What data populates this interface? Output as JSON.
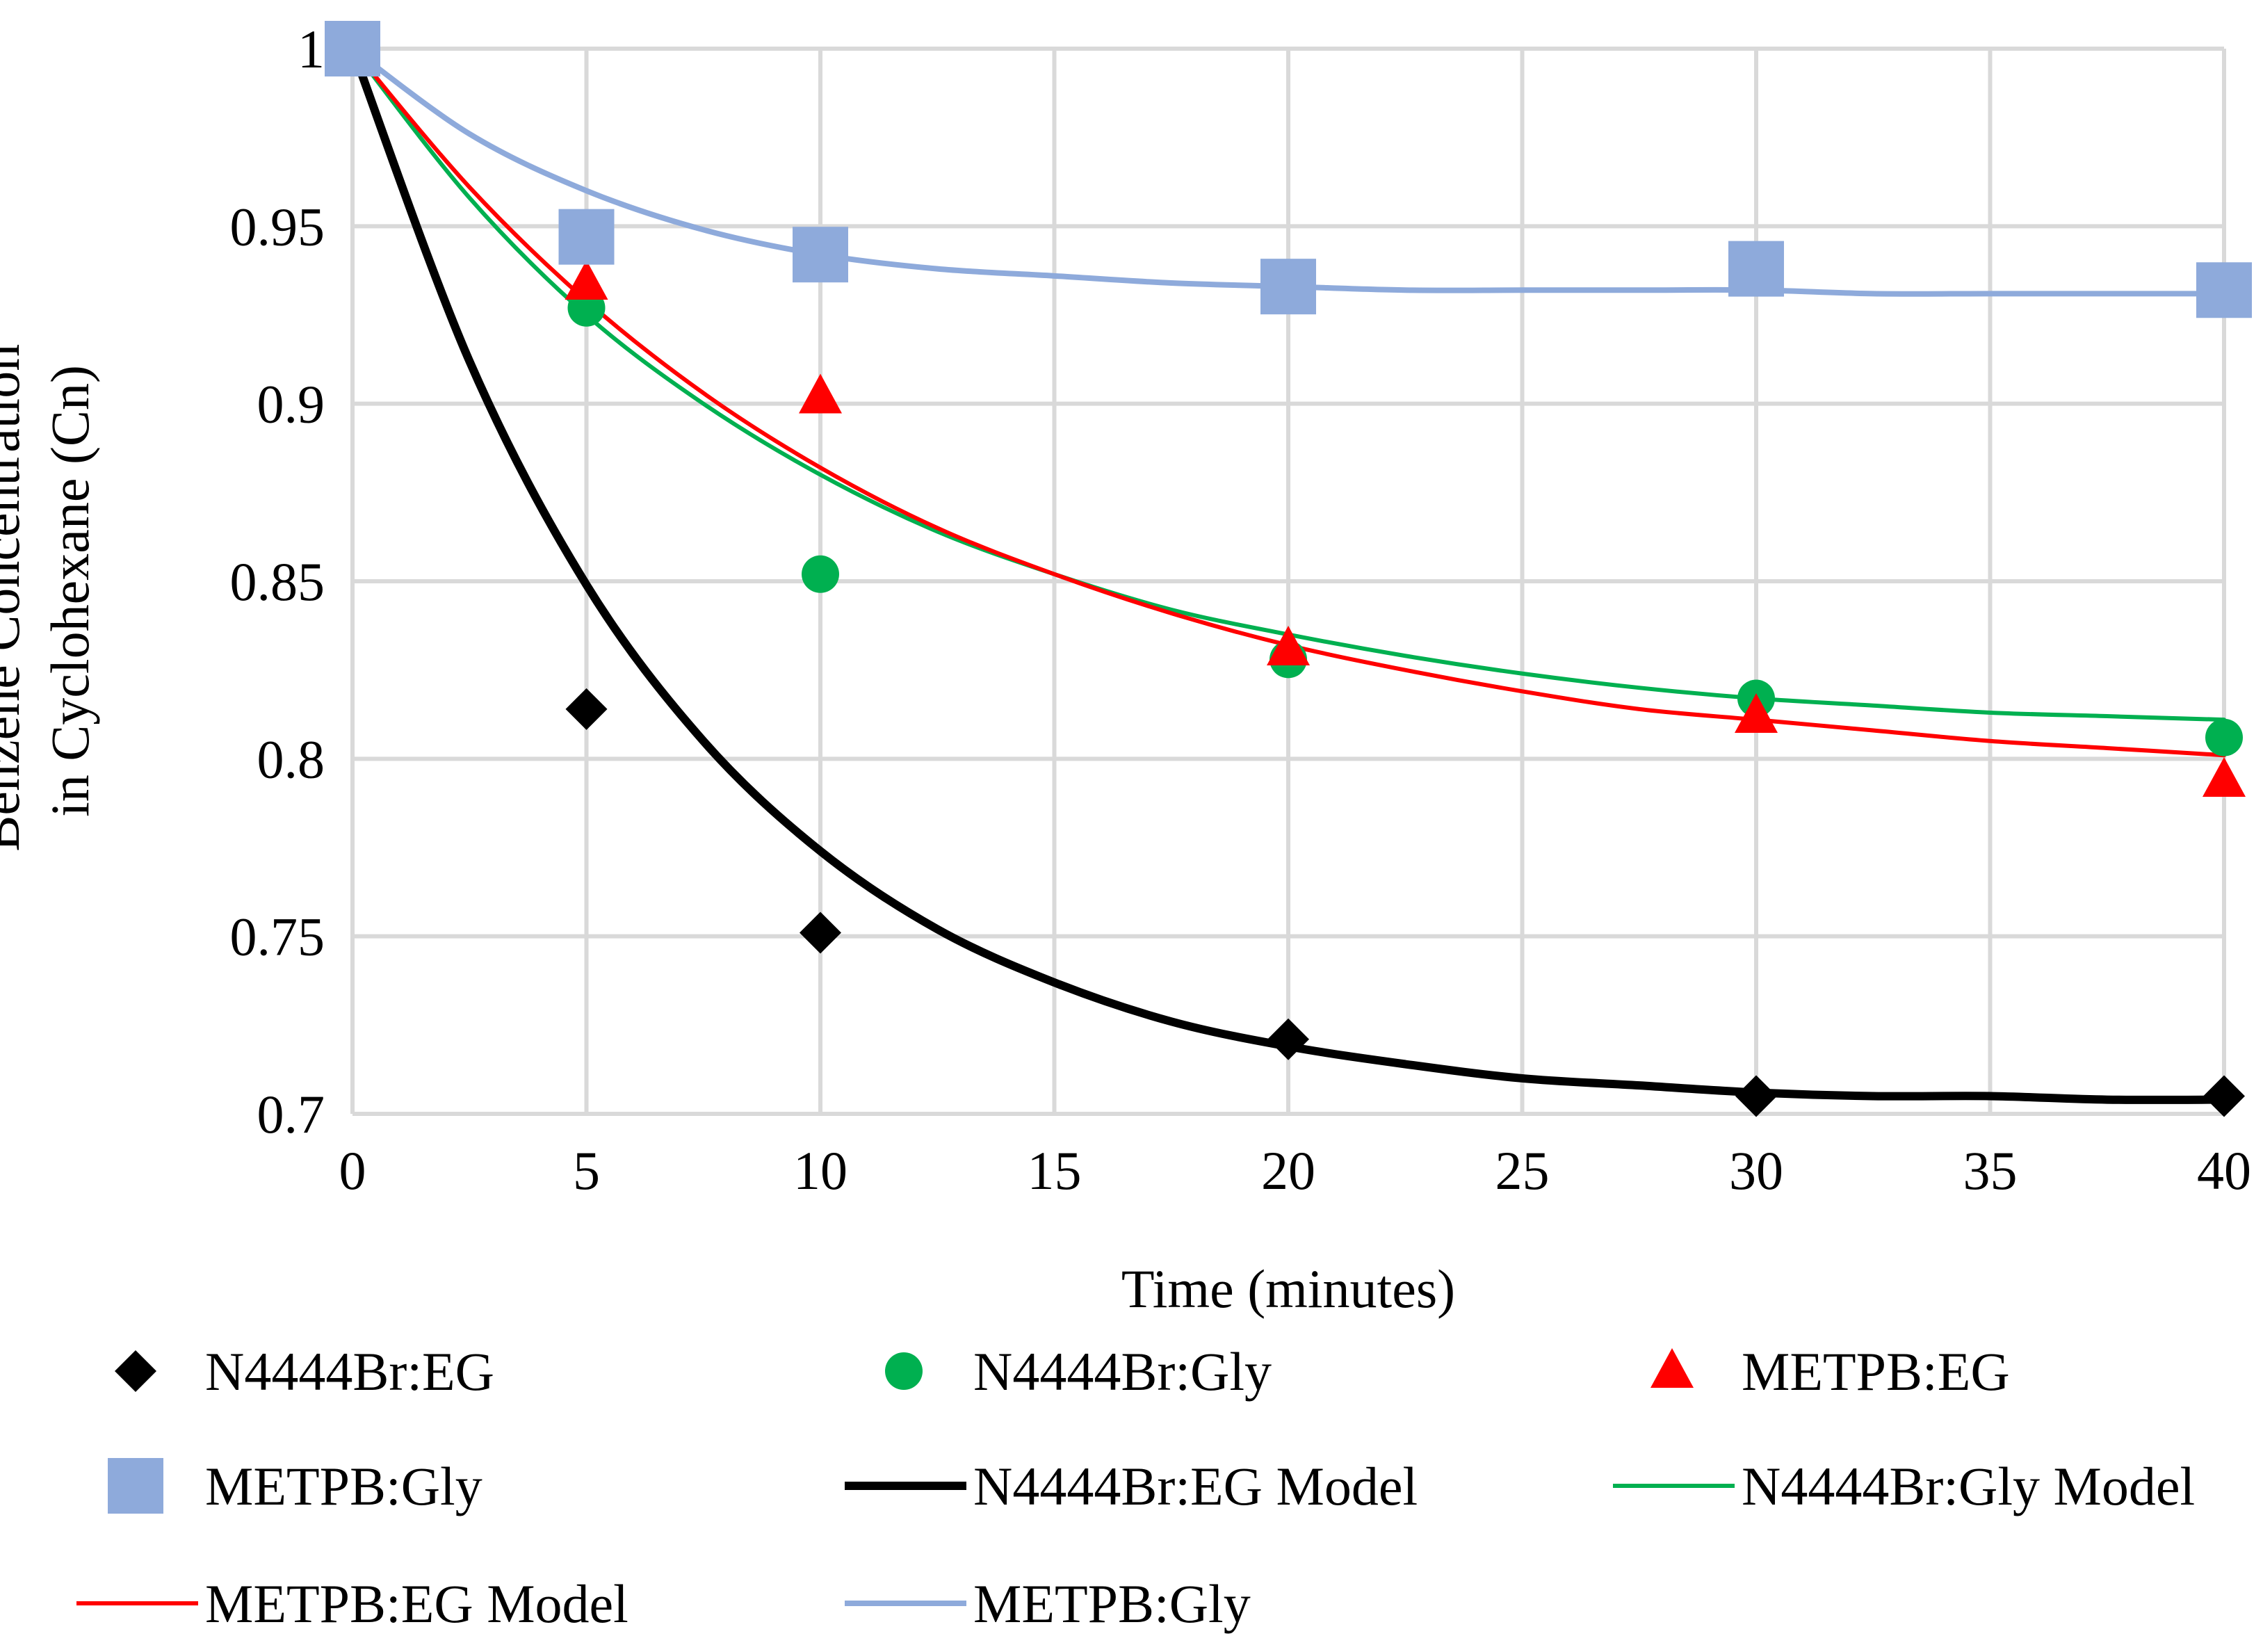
{
  "chart_data": {
    "type": "scatter",
    "title": "",
    "xlabel": "Time (minutes)",
    "ylabel_lines": [
      "Benzene Concentration",
      "in Cyclohexane (Cn)"
    ],
    "xlim": [
      0,
      40
    ],
    "ylim": [
      0.7,
      1.0
    ],
    "xticks": [
      0,
      5,
      10,
      15,
      20,
      25,
      30,
      35,
      40
    ],
    "xtick_labels": [
      "0",
      "5",
      "10",
      "15",
      "20",
      "25",
      "30",
      "35",
      "40"
    ],
    "yticks": [
      0.7,
      0.75,
      0.8,
      0.85,
      0.9,
      0.95,
      1.0
    ],
    "ytick_labels": [
      "0.7",
      "0.75",
      "0.8",
      "0.85",
      "0.9",
      "0.95",
      "1"
    ],
    "grid": true,
    "legend_position": "bottom",
    "series": [
      {
        "name": "N4444Br:EG",
        "kind": "marker",
        "marker": "diamond",
        "color": "#000000",
        "x": [
          0,
          5,
          10,
          20,
          30,
          40
        ],
        "y": [
          1.0,
          0.814,
          0.751,
          0.721,
          0.705,
          0.705
        ]
      },
      {
        "name": "N4444Br:Gly",
        "kind": "marker",
        "marker": "circle",
        "color": "#00b050",
        "x": [
          0,
          5,
          10,
          20,
          30,
          40
        ],
        "y": [
          1.0,
          0.927,
          0.852,
          0.828,
          0.817,
          0.806
        ]
      },
      {
        "name": "METPB:EG",
        "kind": "marker",
        "marker": "triangle",
        "color": "#ff0000",
        "x": [
          0,
          5,
          10,
          20,
          30,
          40
        ],
        "y": [
          1.0,
          0.934,
          0.902,
          0.831,
          0.812,
          0.794
        ]
      },
      {
        "name": "METPB:Gly",
        "kind": "marker",
        "marker": "square",
        "color": "#8eaadb",
        "x": [
          0,
          5,
          10,
          20,
          30,
          40
        ],
        "y": [
          1.0,
          0.947,
          0.942,
          0.933,
          0.938,
          0.932
        ]
      },
      {
        "name": "N4444Br:EG Model",
        "kind": "line",
        "color": "#000000",
        "width": 12,
        "x": [
          0,
          2.5,
          5,
          7.5,
          10,
          12.5,
          15,
          17.5,
          20,
          22.5,
          25,
          27.5,
          30,
          32.5,
          35,
          37.5,
          40
        ],
        "y": [
          1.0,
          0.912,
          0.849,
          0.805,
          0.774,
          0.752,
          0.737,
          0.726,
          0.719,
          0.714,
          0.71,
          0.708,
          0.706,
          0.705,
          0.705,
          0.704,
          0.704
        ]
      },
      {
        "name": "N4444Br:Gly Model",
        "kind": "line",
        "color": "#00b050",
        "width": 6,
        "x": [
          0,
          2.5,
          5,
          7.5,
          10,
          12.5,
          15,
          17.5,
          20,
          22.5,
          25,
          27.5,
          30,
          32.5,
          35,
          37.5,
          40
        ],
        "y": [
          1.0,
          0.958,
          0.925,
          0.9,
          0.88,
          0.864,
          0.852,
          0.842,
          0.835,
          0.829,
          0.824,
          0.82,
          0.817,
          0.815,
          0.813,
          0.812,
          0.811
        ]
      },
      {
        "name": "METPB:EG Model",
        "kind": "line",
        "color": "#ff0000",
        "width": 6,
        "x": [
          0,
          2.5,
          5,
          7.5,
          10,
          12.5,
          15,
          17.5,
          20,
          22.5,
          25,
          27.5,
          30,
          32.5,
          35,
          37.5,
          40
        ],
        "y": [
          1.0,
          0.961,
          0.929,
          0.903,
          0.882,
          0.865,
          0.852,
          0.841,
          0.832,
          0.825,
          0.819,
          0.814,
          0.811,
          0.808,
          0.805,
          0.803,
          0.801
        ]
      },
      {
        "name": "METPB:Gly",
        "kind": "line",
        "color": "#8eaadb",
        "width": 8,
        "x": [
          0,
          2.5,
          5,
          7.5,
          10,
          12.5,
          15,
          17.5,
          20,
          22.5,
          25,
          27.5,
          30,
          32.5,
          35,
          37.5,
          40
        ],
        "y": [
          1.0,
          0.976,
          0.96,
          0.949,
          0.942,
          0.938,
          0.936,
          0.934,
          0.933,
          0.932,
          0.932,
          0.932,
          0.932,
          0.931,
          0.931,
          0.931,
          0.931
        ]
      }
    ]
  }
}
